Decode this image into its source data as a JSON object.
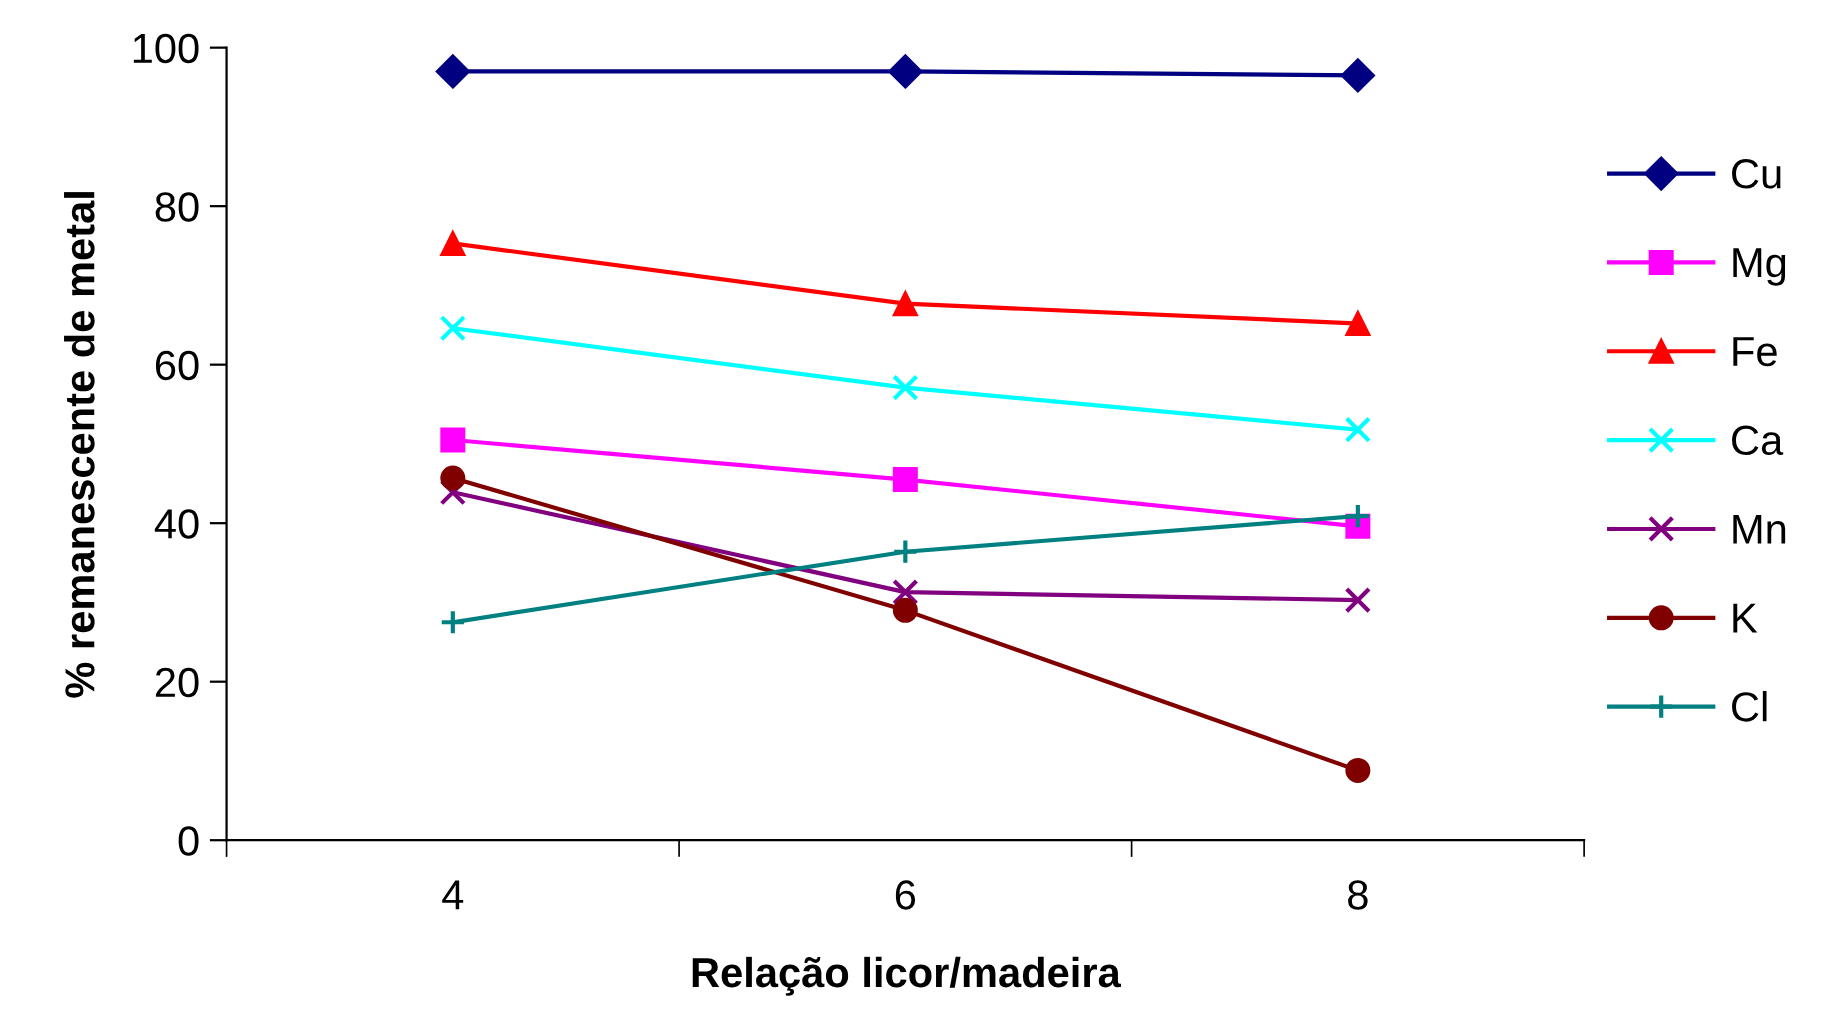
{
  "chart_data": {
    "type": "line",
    "xlabel": "Relação licor/madeira",
    "ylabel": "% remanescente de metal",
    "categories": [
      "4",
      "6",
      "8"
    ],
    "ylim": [
      0,
      100
    ],
    "yticks": [
      0,
      20,
      40,
      60,
      80,
      100
    ],
    "grid": false,
    "legend": "right",
    "series": [
      {
        "name": "Cu",
        "color": "#000080",
        "marker": "diamond",
        "values": [
          97.0,
          97.0,
          96.5
        ]
      },
      {
        "name": "Mg",
        "color": "#ff00ff",
        "marker": "square",
        "values": [
          50.5,
          45.5,
          39.6
        ]
      },
      {
        "name": "Fe",
        "color": "#ff0000",
        "marker": "triangle",
        "values": [
          75.3,
          67.7,
          65.2
        ]
      },
      {
        "name": "Ca",
        "color": "#00ffff",
        "marker": "cross",
        "values": [
          64.6,
          57.1,
          51.8
        ]
      },
      {
        "name": "Mn",
        "color": "#800080",
        "marker": "cross",
        "values": [
          43.9,
          31.3,
          30.3
        ]
      },
      {
        "name": "K",
        "color": "#800000",
        "marker": "circle",
        "values": [
          45.7,
          29.0,
          8.8
        ]
      },
      {
        "name": "Cl",
        "color": "#008080",
        "marker": "plus",
        "values": [
          27.5,
          36.4,
          40.9
        ]
      }
    ]
  }
}
